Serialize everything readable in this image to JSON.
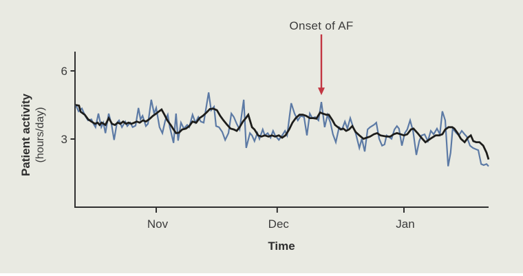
{
  "figure": {
    "background_color": "#e9eae2",
    "annotation_label": "Onset of AF",
    "x_axis_title": "Time",
    "y_axis_title": "Patient activity",
    "y_axis_subtitle": "(hours/day)",
    "colors": {
      "daily_line": "#5c7aa5",
      "trend_line": "#1d1d1b",
      "axis": "#2f2f2f",
      "annotation_arrow": "#c23642",
      "text": "#3b3b3b"
    }
  },
  "chart_data": {
    "type": "line",
    "title": "",
    "xlabel": "Time",
    "ylabel": "Patient activity (hours/day)",
    "x_unit": "days from start of recording",
    "xlim": [
      0,
      100
    ],
    "ylim": [
      0,
      6.8
    ],
    "grid": false,
    "legend": "none",
    "y_ticks": [
      3,
      6
    ],
    "x_ticks": [
      {
        "label": "Nov",
        "day": 19.5
      },
      {
        "label": "Dec",
        "day": 48.8
      },
      {
        "label": "Jan",
        "day": 79.5
      }
    ],
    "annotation": {
      "label": "Onset of AF",
      "day": 59.5,
      "value": 4.63
    },
    "series": [
      {
        "name": "daily patient activity",
        "color": "#5c7aa5",
        "points": [
          [
            0,
            4.5
          ],
          [
            0.7,
            4.22
          ],
          [
            1.5,
            4.35
          ],
          [
            2.3,
            4.02
          ],
          [
            3,
            3.82
          ],
          [
            3.8,
            3.87
          ],
          [
            4.3,
            3.67
          ],
          [
            4.8,
            3.52
          ],
          [
            5.5,
            4.12
          ],
          [
            6.2,
            3.52
          ],
          [
            6.7,
            3.72
          ],
          [
            7.2,
            3.26
          ],
          [
            8,
            4.12
          ],
          [
            8.7,
            3.62
          ],
          [
            9.3,
            2.96
          ],
          [
            10,
            3.72
          ],
          [
            10.5,
            3.82
          ],
          [
            11.2,
            3.52
          ],
          [
            12,
            3.77
          ],
          [
            12.5,
            3.57
          ],
          [
            13.2,
            3.72
          ],
          [
            13.8,
            3.52
          ],
          [
            14.5,
            3.59
          ],
          [
            15.2,
            4.37
          ],
          [
            15.7,
            3.87
          ],
          [
            16.2,
            4.02
          ],
          [
            17,
            3.57
          ],
          [
            17.5,
            3.67
          ],
          [
            18.3,
            4.73
          ],
          [
            19,
            4.12
          ],
          [
            19.5,
            4.37
          ],
          [
            20.3,
            3.52
          ],
          [
            21,
            3.26
          ],
          [
            21.7,
            3.82
          ],
          [
            22.3,
            4.07
          ],
          [
            22.8,
            3.52
          ],
          [
            23.7,
            2.83
          ],
          [
            24.3,
            4.12
          ],
          [
            24.8,
            2.93
          ],
          [
            25.5,
            3.72
          ],
          [
            26.2,
            3.46
          ],
          [
            27,
            3.62
          ],
          [
            27.5,
            3.52
          ],
          [
            28.3,
            4.07
          ],
          [
            29,
            3.72
          ],
          [
            29.7,
            3.97
          ],
          [
            30.3,
            3.77
          ],
          [
            31,
            3.72
          ],
          [
            32.2,
            5.05
          ],
          [
            32.8,
            4.27
          ],
          [
            33.5,
            4.42
          ],
          [
            34,
            3.57
          ],
          [
            34.7,
            3.52
          ],
          [
            35.5,
            3.31
          ],
          [
            36.2,
            2.96
          ],
          [
            37,
            3.26
          ],
          [
            37.7,
            4.12
          ],
          [
            38.3,
            3.97
          ],
          [
            39,
            3.67
          ],
          [
            39.7,
            3.42
          ],
          [
            40.7,
            4.73
          ],
          [
            41.3,
            2.61
          ],
          [
            42.2,
            3.26
          ],
          [
            42.7,
            3.16
          ],
          [
            43.3,
            2.91
          ],
          [
            44,
            3.26
          ],
          [
            44.5,
            3.01
          ],
          [
            45.3,
            3.42
          ],
          [
            45.8,
            3.16
          ],
          [
            46.5,
            3.26
          ],
          [
            47.2,
            3.06
          ],
          [
            47.8,
            3.36
          ],
          [
            48.3,
            3.16
          ],
          [
            49.2,
            2.96
          ],
          [
            50,
            3.16
          ],
          [
            50.7,
            3.36
          ],
          [
            51.2,
            3.16
          ],
          [
            52.2,
            4.58
          ],
          [
            53,
            4.12
          ],
          [
            53.8,
            3.82
          ],
          [
            54.5,
            4.02
          ],
          [
            55.3,
            3.97
          ],
          [
            56,
            3.16
          ],
          [
            56.7,
            4.12
          ],
          [
            57.3,
            3.92
          ],
          [
            58,
            3.97
          ],
          [
            58.8,
            3.82
          ],
          [
            59.5,
            4.63
          ],
          [
            60.3,
            3.52
          ],
          [
            61,
            4.07
          ],
          [
            61.7,
            3.72
          ],
          [
            62.3,
            3.21
          ],
          [
            63,
            2.86
          ],
          [
            63.8,
            3.52
          ],
          [
            64.5,
            3.42
          ],
          [
            65.2,
            3.77
          ],
          [
            65.8,
            3.46
          ],
          [
            66.5,
            3.92
          ],
          [
            67.2,
            3.52
          ],
          [
            67.8,
            3.26
          ],
          [
            68.7,
            2.61
          ],
          [
            69.3,
            3.01
          ],
          [
            70,
            2.45
          ],
          [
            70.7,
            3.42
          ],
          [
            71.3,
            3.52
          ],
          [
            72.2,
            3.62
          ],
          [
            72.8,
            3.72
          ],
          [
            73.5,
            3.01
          ],
          [
            74.2,
            2.71
          ],
          [
            74.8,
            2.76
          ],
          [
            75.3,
            3.16
          ],
          [
            76.5,
            3.01
          ],
          [
            77.2,
            3.42
          ],
          [
            77.8,
            3.57
          ],
          [
            78.3,
            3.46
          ],
          [
            79,
            2.71
          ],
          [
            79.7,
            3.26
          ],
          [
            80.3,
            3.42
          ],
          [
            81,
            3.82
          ],
          [
            81.7,
            3.36
          ],
          [
            82.5,
            2.3
          ],
          [
            83.2,
            2.91
          ],
          [
            83.8,
            3.16
          ],
          [
            84.5,
            3.21
          ],
          [
            85.3,
            2.91
          ],
          [
            86,
            3.36
          ],
          [
            86.7,
            3.21
          ],
          [
            87.5,
            3.46
          ],
          [
            88.2,
            3.21
          ],
          [
            88.8,
            4.22
          ],
          [
            89.5,
            3.82
          ],
          [
            90.2,
            1.8
          ],
          [
            90.8,
            2.4
          ],
          [
            91.3,
            3.46
          ],
          [
            92.2,
            3.26
          ],
          [
            92.8,
            3.16
          ],
          [
            93.5,
            3.36
          ],
          [
            94.2,
            3.21
          ],
          [
            94.7,
            3.11
          ],
          [
            95.5,
            2.71
          ],
          [
            96.2,
            2.61
          ],
          [
            96.8,
            2.56
          ],
          [
            97.5,
            2.51
          ],
          [
            98.2,
            1.9
          ],
          [
            98.8,
            1.85
          ],
          [
            99.5,
            1.9
          ],
          [
            100,
            1.8
          ]
        ]
      },
      {
        "name": "smoothed activity trend",
        "color": "#1d1d1b",
        "points": [
          [
            0,
            4.5
          ],
          [
            0.8,
            4.47
          ],
          [
            1.2,
            4.2
          ],
          [
            2.2,
            4.07
          ],
          [
            3,
            3.87
          ],
          [
            3.8,
            3.77
          ],
          [
            4.7,
            3.67
          ],
          [
            5.3,
            3.72
          ],
          [
            5.8,
            3.62
          ],
          [
            6.3,
            3.72
          ],
          [
            7.2,
            3.62
          ],
          [
            8,
            3.92
          ],
          [
            8.8,
            3.67
          ],
          [
            9.5,
            3.62
          ],
          [
            10.2,
            3.72
          ],
          [
            10.8,
            3.67
          ],
          [
            11.5,
            3.77
          ],
          [
            12.2,
            3.67
          ],
          [
            12.8,
            3.72
          ],
          [
            13.5,
            3.67
          ],
          [
            14.2,
            3.72
          ],
          [
            14.8,
            3.77
          ],
          [
            15.5,
            3.72
          ],
          [
            16.3,
            3.82
          ],
          [
            17,
            3.77
          ],
          [
            17.8,
            3.87
          ],
          [
            18.7,
            4.02
          ],
          [
            19.5,
            4.12
          ],
          [
            20.2,
            4.22
          ],
          [
            20.8,
            4.3
          ],
          [
            21.5,
            4.07
          ],
          [
            22.2,
            3.82
          ],
          [
            23,
            3.62
          ],
          [
            23.7,
            3.42
          ],
          [
            24.3,
            3.26
          ],
          [
            25,
            3.28
          ],
          [
            25.8,
            3.42
          ],
          [
            26.7,
            3.46
          ],
          [
            27.5,
            3.57
          ],
          [
            28.3,
            3.77
          ],
          [
            29.2,
            3.72
          ],
          [
            30,
            3.92
          ],
          [
            30.8,
            4.02
          ],
          [
            31.7,
            4.17
          ],
          [
            32.5,
            4.32
          ],
          [
            33.3,
            4.34
          ],
          [
            34.2,
            4.27
          ],
          [
            35,
            4.02
          ],
          [
            35.8,
            3.82
          ],
          [
            36.7,
            3.62
          ],
          [
            37.5,
            3.46
          ],
          [
            38.3,
            3.42
          ],
          [
            39,
            3.36
          ],
          [
            39.7,
            3.52
          ],
          [
            40.5,
            3.77
          ],
          [
            41.2,
            3.92
          ],
          [
            41.8,
            4.07
          ],
          [
            42.7,
            3.52
          ],
          [
            43.3,
            3.42
          ],
          [
            44.2,
            3.16
          ],
          [
            45,
            3.11
          ],
          [
            45.8,
            3.16
          ],
          [
            46.7,
            3.11
          ],
          [
            47.5,
            3.16
          ],
          [
            48.3,
            3.11
          ],
          [
            49.2,
            3.16
          ],
          [
            50,
            3.06
          ],
          [
            50.8,
            3.16
          ],
          [
            51.7,
            3.42
          ],
          [
            52.5,
            3.72
          ],
          [
            53.3,
            3.92
          ],
          [
            54.2,
            4.07
          ],
          [
            55,
            4.07
          ],
          [
            55.8,
            4.02
          ],
          [
            56.7,
            3.92
          ],
          [
            57.5,
            3.92
          ],
          [
            58.3,
            3.9
          ],
          [
            59.2,
            4.17
          ],
          [
            59.8,
            4.12
          ],
          [
            60.7,
            4.07
          ],
          [
            61.3,
            4.07
          ],
          [
            62.2,
            3.82
          ],
          [
            62.8,
            3.62
          ],
          [
            63.5,
            3.52
          ],
          [
            64.2,
            3.42
          ],
          [
            64.8,
            3.46
          ],
          [
            65.5,
            3.36
          ],
          [
            66.2,
            3.42
          ],
          [
            67,
            3.57
          ],
          [
            67.8,
            3.31
          ],
          [
            68.7,
            3.16
          ],
          [
            69.7,
            3.01
          ],
          [
            70.5,
            3.06
          ],
          [
            71.3,
            3.11
          ],
          [
            72.2,
            3.21
          ],
          [
            73,
            3.26
          ],
          [
            73.8,
            3.16
          ],
          [
            75.3,
            3.11
          ],
          [
            76.2,
            3.11
          ],
          [
            77,
            3.21
          ],
          [
            77.8,
            3.26
          ],
          [
            78.7,
            3.21
          ],
          [
            79.5,
            3.16
          ],
          [
            80.3,
            3.21
          ],
          [
            81.2,
            3.42
          ],
          [
            81.8,
            3.46
          ],
          [
            82.8,
            3.26
          ],
          [
            83.7,
            3.06
          ],
          [
            84.7,
            2.86
          ],
          [
            85.5,
            2.96
          ],
          [
            86.3,
            3.06
          ],
          [
            87.2,
            3.16
          ],
          [
            88,
            3.16
          ],
          [
            88.8,
            3.21
          ],
          [
            89.5,
            3.42
          ],
          [
            90.3,
            3.52
          ],
          [
            91.2,
            3.52
          ],
          [
            91.7,
            3.46
          ],
          [
            92.5,
            3.26
          ],
          [
            93.3,
            3.01
          ],
          [
            94.2,
            2.86
          ],
          [
            95,
            3.06
          ],
          [
            95.7,
            3.16
          ],
          [
            96.3,
            2.91
          ],
          [
            97,
            2.86
          ],
          [
            97.8,
            2.86
          ],
          [
            98.7,
            2.71
          ],
          [
            99.5,
            2.4
          ],
          [
            100,
            2.1
          ]
        ]
      }
    ]
  }
}
